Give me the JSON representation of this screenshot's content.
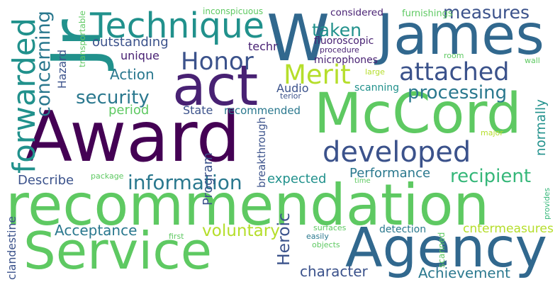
{
  "words": [
    {
      "text": "Award",
      "color": "#440154"
    },
    {
      "text": "recommendation",
      "color": "#5ec962"
    },
    {
      "text": "Service",
      "color": "#5ec962"
    },
    {
      "text": "McCord",
      "color": "#5ec962"
    },
    {
      "text": "Agency",
      "color": "#31688e"
    },
    {
      "text": "James",
      "color": "#31688e"
    },
    {
      "text": "act",
      "color": "#482173"
    },
    {
      "text": "W",
      "color": "#31688e"
    },
    {
      "text": "Jr",
      "color": "#21918c"
    },
    {
      "text": "Technique",
      "color": "#21918c"
    },
    {
      "text": "developed",
      "color": "#3b528b"
    },
    {
      "text": "forwarded",
      "color": "#21918c"
    },
    {
      "text": "attached",
      "color": "#3b528b"
    },
    {
      "text": "Merit",
      "color": "#b5de2b"
    },
    {
      "text": "Honor",
      "color": "#3b528b"
    },
    {
      "text": "concerning",
      "color": "#2a788e"
    },
    {
      "text": "information",
      "color": "#2a788e"
    },
    {
      "text": "recipient",
      "color": "#35b779"
    },
    {
      "text": "security",
      "color": "#2a788e"
    },
    {
      "text": "processing",
      "color": "#2a788e"
    },
    {
      "text": "taken",
      "color": "#21918c"
    },
    {
      "text": "measures",
      "color": "#3b528b"
    },
    {
      "text": "Heroic",
      "color": "#3b528b"
    },
    {
      "text": "voluntary",
      "color": "#b5de2b"
    },
    {
      "text": "Achievement",
      "color": "#2a788e"
    },
    {
      "text": "character",
      "color": "#3b528b"
    },
    {
      "text": "Acceptance",
      "color": "#2a788e"
    },
    {
      "text": "Performance",
      "color": "#2a788e"
    },
    {
      "text": "Action",
      "color": "#2a788e"
    },
    {
      "text": "outstanding",
      "color": "#3b528b"
    },
    {
      "text": "expected",
      "color": "#21918c"
    },
    {
      "text": "Describe",
      "color": "#3b528b"
    },
    {
      "text": "normally",
      "color": "#21918c"
    },
    {
      "text": "cntermeasures",
      "color": "#b5de2b"
    },
    {
      "text": "period",
      "color": "#5ec962"
    },
    {
      "text": "State",
      "color": "#3b528b"
    },
    {
      "text": "recommended",
      "color": "#2a788e"
    },
    {
      "text": "Hazard",
      "color": "#3b528b"
    },
    {
      "text": "unique",
      "color": "#482173"
    },
    {
      "text": "techr",
      "color": "#482173"
    },
    {
      "text": "Program",
      "color": "#3b528b"
    },
    {
      "text": "Audio",
      "color": "#3b528b"
    },
    {
      "text": "microphones",
      "color": "#482173"
    },
    {
      "text": "fluoroscopic",
      "color": "#482173"
    },
    {
      "text": "scanning",
      "color": "#21918c"
    },
    {
      "text": "detection",
      "color": "#2a788e"
    },
    {
      "text": "breakthrough",
      "color": "#3b528b"
    },
    {
      "text": "clandestine",
      "color": "#3b528b"
    },
    {
      "text": "considered",
      "color": "#482173"
    },
    {
      "text": "furnishings",
      "color": "#5ec962"
    },
    {
      "text": "inconspicuous",
      "color": "#5ec962"
    },
    {
      "text": "transportable",
      "color": "#5ec962"
    },
    {
      "text": "procedure",
      "color": "#482173"
    },
    {
      "text": "room",
      "color": "#5ec962"
    },
    {
      "text": "large",
      "color": "#b5de2b"
    },
    {
      "text": "terior",
      "color": "#3b528b"
    },
    {
      "text": "wall",
      "color": "#5ec962"
    },
    {
      "text": "major",
      "color": "#b5de2b"
    },
    {
      "text": "package",
      "color": "#5ec962"
    },
    {
      "text": "time",
      "color": "#5ec962"
    },
    {
      "text": "provides",
      "color": "#35b779"
    },
    {
      "text": "first",
      "color": "#5ec962"
    },
    {
      "text": "easily",
      "color": "#2a788e"
    },
    {
      "text": "surfaces",
      "color": "#5ec962"
    },
    {
      "text": "objects",
      "color": "#5ec962"
    },
    {
      "text": "scanned",
      "color": "#5ec962"
    }
  ]
}
